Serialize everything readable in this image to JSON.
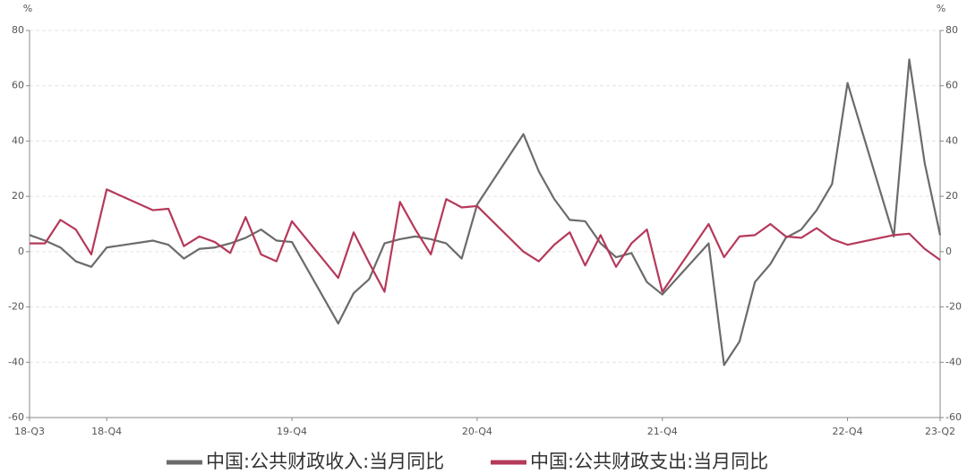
{
  "chart_data": {
    "type": "line",
    "y_unit": "%",
    "y2_unit": "%",
    "x": [
      0,
      1,
      2,
      3,
      4,
      5,
      8,
      9,
      10,
      11,
      12,
      13,
      14,
      15,
      16,
      17,
      20,
      21,
      22,
      23,
      24,
      25,
      26,
      27,
      28,
      29,
      32,
      33,
      34,
      35,
      36,
      37,
      38,
      39,
      40,
      41,
      44,
      45,
      46,
      47,
      48,
      49,
      50,
      51,
      52,
      53,
      56,
      57,
      58,
      59
    ],
    "xlim": [
      0,
      59
    ],
    "xticks": [
      {
        "value": 0,
        "label": "18-Q3"
      },
      {
        "value": 5,
        "label": "18-Q4"
      },
      {
        "value": 17,
        "label": "19-Q4"
      },
      {
        "value": 29,
        "label": "20-Q4"
      },
      {
        "value": 41,
        "label": "21-Q4"
      },
      {
        "value": 53,
        "label": "22-Q4"
      },
      {
        "value": 59,
        "label": "23-Q2"
      }
    ],
    "ylim": [
      -60,
      80
    ],
    "yticks": [
      -60,
      -40,
      -20,
      0,
      20,
      40,
      60,
      80
    ],
    "y2lim": [
      -60,
      80
    ],
    "y2ticks": [
      -60,
      -40,
      -20,
      0,
      20,
      40,
      60,
      80
    ],
    "grid": true,
    "legend": "bottom",
    "series": [
      {
        "name": "中国:公共财政收入:当月同比",
        "color": "#6b6b6b",
        "values": [
          6,
          4,
          1.5,
          -3.5,
          -5.5,
          1.5,
          4,
          2.5,
          -2.5,
          1,
          1.5,
          3,
          5,
          8,
          4,
          3.5,
          -26,
          -15,
          -10,
          3,
          4.5,
          5.5,
          4.5,
          3,
          -2.5,
          17,
          42.5,
          29,
          19,
          11.5,
          11,
          3,
          -2,
          -0.5,
          -11,
          -15.5,
          3,
          -41,
          -32.5,
          -11,
          -4.5,
          5,
          8,
          15,
          24.5,
          61,
          5.5,
          69.5,
          32,
          6
        ]
      },
      {
        "name": "中国:公共财政支出:当月同比",
        "color": "#b5395a",
        "values": [
          3,
          3,
          11.5,
          8,
          -1,
          22.5,
          15,
          15.5,
          2,
          5.5,
          3.5,
          -0.5,
          12.5,
          -1,
          -3.5,
          11,
          -9.5,
          7,
          -4,
          -14.5,
          18,
          8,
          -1,
          19,
          16,
          16.5,
          0,
          -3.5,
          2.5,
          7,
          -5,
          6,
          -5.5,
          3,
          8,
          -14.5,
          10,
          -2,
          5.5,
          6,
          10,
          5.5,
          5,
          8.5,
          4.5,
          2.5,
          6,
          6.5,
          1,
          -3
        ]
      }
    ]
  }
}
